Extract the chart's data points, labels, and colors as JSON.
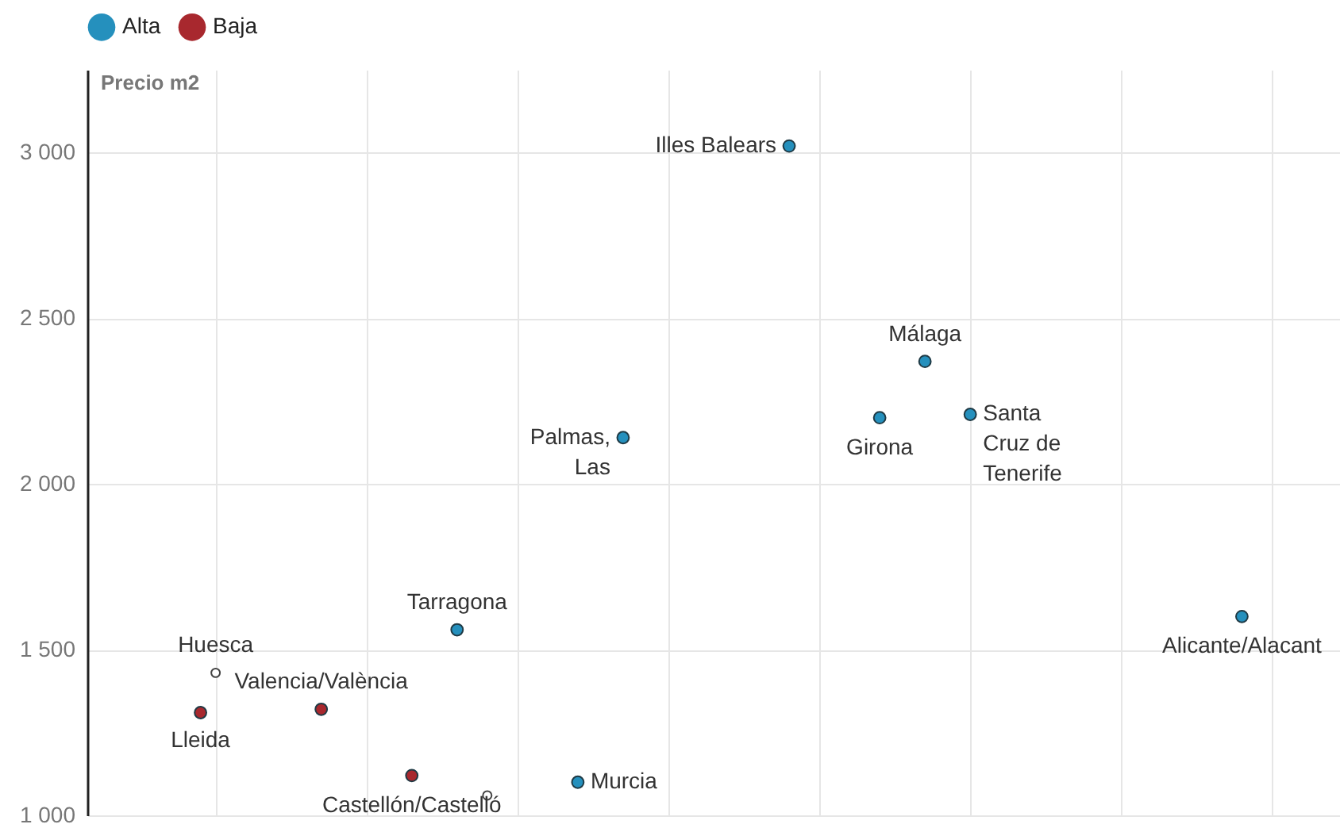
{
  "chart_data": {
    "type": "scatter",
    "ylabel": "Precio m2",
    "categories": [
      null,
      null,
      null,
      null,
      null,
      null,
      null,
      null,
      null,
      null,
      null,
      null,
      null,
      null,
      null,
      null,
      null,
      null,
      null,
      null,
      null,
      null,
      null,
      null,
      null,
      null,
      null,
      null,
      null,
      null,
      null,
      null,
      null,
      null,
      null,
      null,
      null,
      null,
      null,
      null,
      null,
      null,
      null,
      null,
      null,
      null,
      null,
      null,
      null,
      null,
      null,
      null,
      null,
      null,
      null,
      null,
      null,
      null,
      null,
      null,
      null,
      null,
      null,
      null,
      null,
      null,
      null,
      null,
      null,
      null,
      null,
      null,
      null,
      null,
      null,
      null,
      null,
      null,
      null,
      null,
      null,
      null,
      null
    ],
    "ylim": [
      1000,
      3250
    ],
    "yticks": [
      {
        "value": 1000,
        "label": "1 000"
      },
      {
        "value": 1500,
        "label": "1 500"
      },
      {
        "value": 2000,
        "label": "2 000"
      },
      {
        "value": 2500,
        "label": "2 500"
      },
      {
        "value": 3000,
        "label": "3 000"
      }
    ],
    "tick_labels": "y",
    "grid": true,
    "legend": "top left",
    "marker": "circle",
    "series": [
      {
        "name": "Alta",
        "color": "#2590bd",
        "values": [
          null,
          null,
          null,
          null,
          null,
          null,
          null,
          null,
          null,
          null,
          null,
          null,
          null,
          null,
          null,
          null,
          null,
          null,
          null,
          null,
          null,
          null,
          null,
          null,
          1560,
          null,
          null,
          null,
          null,
          null,
          null,
          null,
          1100,
          null,
          null,
          2140,
          null,
          null,
          null,
          null,
          null,
          null,
          null,
          null,
          null,
          null,
          3020,
          null,
          null,
          null,
          null,
          null,
          2200,
          null,
          null,
          2370,
          null,
          null,
          2210,
          null,
          null,
          null,
          null,
          null,
          null,
          null,
          null,
          null,
          null,
          null,
          null,
          null,
          null,
          null,
          null,
          null,
          1600,
          null,
          null,
          null,
          null,
          null,
          null
        ],
        "value_labels": [
          null,
          null,
          null,
          null,
          null,
          null,
          null,
          null,
          null,
          null,
          null,
          null,
          null,
          null,
          null,
          null,
          null,
          null,
          null,
          null,
          null,
          null,
          null,
          null,
          "Tarragona",
          null,
          null,
          null,
          null,
          null,
          null,
          null,
          "Murcia",
          null,
          null,
          "Palmas, Las",
          null,
          null,
          null,
          null,
          null,
          null,
          null,
          null,
          null,
          null,
          "Illes Balears",
          null,
          null,
          null,
          null,
          null,
          "Girona",
          null,
          null,
          "Málaga",
          null,
          null,
          "Santa Cruz de Tenerife",
          null,
          null,
          null,
          null,
          null,
          null,
          null,
          null,
          null,
          null,
          null,
          null,
          null,
          null,
          null,
          null,
          null,
          "Alicante/Alacant",
          null,
          null,
          null,
          null,
          null,
          null
        ]
      },
      {
        "name": "Baja",
        "color": "#a8282e",
        "values": [
          null,
          null,
          null,
          null,
          null,
          null,
          null,
          1310,
          null,
          null,
          null,
          null,
          null,
          null,
          null,
          1320,
          null,
          null,
          null,
          null,
          null,
          1120,
          null,
          null,
          null,
          null,
          null,
          null,
          null,
          null,
          null,
          null,
          null,
          null,
          null,
          null,
          null,
          null,
          null,
          null,
          null,
          null,
          null,
          null,
          null,
          null,
          null,
          null,
          null,
          null,
          null,
          null,
          null,
          null,
          null,
          null,
          null,
          null,
          null,
          null,
          null,
          null,
          null,
          null,
          null,
          null,
          null,
          null,
          null,
          null,
          null,
          null,
          null,
          null,
          null,
          null,
          null,
          null,
          null,
          null,
          null,
          null,
          null
        ],
        "value_labels": [
          null,
          null,
          null,
          null,
          null,
          null,
          null,
          "Lleida",
          null,
          null,
          null,
          null,
          null,
          null,
          null,
          "Valencia/València",
          null,
          null,
          null,
          null,
          null,
          "Castellón/Castelló",
          null,
          null,
          null,
          null,
          null,
          null,
          null,
          null,
          null,
          null,
          null,
          null,
          null,
          null,
          null,
          null,
          null,
          null,
          null,
          null,
          null,
          null,
          null,
          null,
          null,
          null,
          null,
          null,
          null,
          null,
          null,
          null,
          null,
          null,
          null,
          null,
          null,
          null,
          null,
          null,
          null,
          null,
          null,
          null,
          null,
          null,
          null,
          null,
          null,
          null,
          null,
          null,
          null,
          null,
          null,
          null,
          null,
          null,
          null,
          null,
          null
        ]
      },
      {
        "color": "#ffffff",
        "values": [
          null,
          null,
          null,
          null,
          null,
          null,
          null,
          null,
          1430,
          null,
          null,
          null,
          null,
          null,
          null,
          null,
          null,
          null,
          null,
          null,
          null,
          null,
          null,
          null,
          null,
          null,
          1060,
          null,
          null,
          null,
          null,
          null,
          null,
          null,
          null,
          null,
          null,
          null,
          null,
          null,
          null,
          null,
          null,
          null,
          null,
          null,
          null,
          null,
          null,
          null,
          null,
          null,
          null,
          null,
          null,
          null,
          null,
          null,
          null,
          null,
          null,
          null,
          null,
          null,
          null,
          null,
          null,
          null,
          null,
          null,
          null,
          null,
          null,
          null,
          null,
          null,
          null,
          null,
          null,
          null,
          null,
          null,
          null
        ],
        "value_labels": [
          null,
          null,
          null,
          null,
          null,
          null,
          null,
          null,
          "Huesca",
          null,
          null,
          null,
          null,
          null,
          null,
          null,
          null,
          null,
          null,
          null,
          null,
          null,
          null,
          null,
          null,
          null,
          null,
          null,
          null,
          null,
          null,
          null,
          null,
          null,
          null,
          null,
          null,
          null,
          null,
          null,
          null,
          null,
          null,
          null,
          null,
          null,
          null,
          null,
          null,
          null,
          null,
          null,
          null,
          null,
          null,
          null,
          null,
          null,
          null,
          null,
          null,
          null,
          null,
          null,
          null,
          null,
          null,
          null,
          null,
          null,
          null,
          null,
          null,
          null,
          null,
          null,
          null,
          null,
          null,
          null,
          null,
          null,
          null
        ]
      }
    ]
  }
}
